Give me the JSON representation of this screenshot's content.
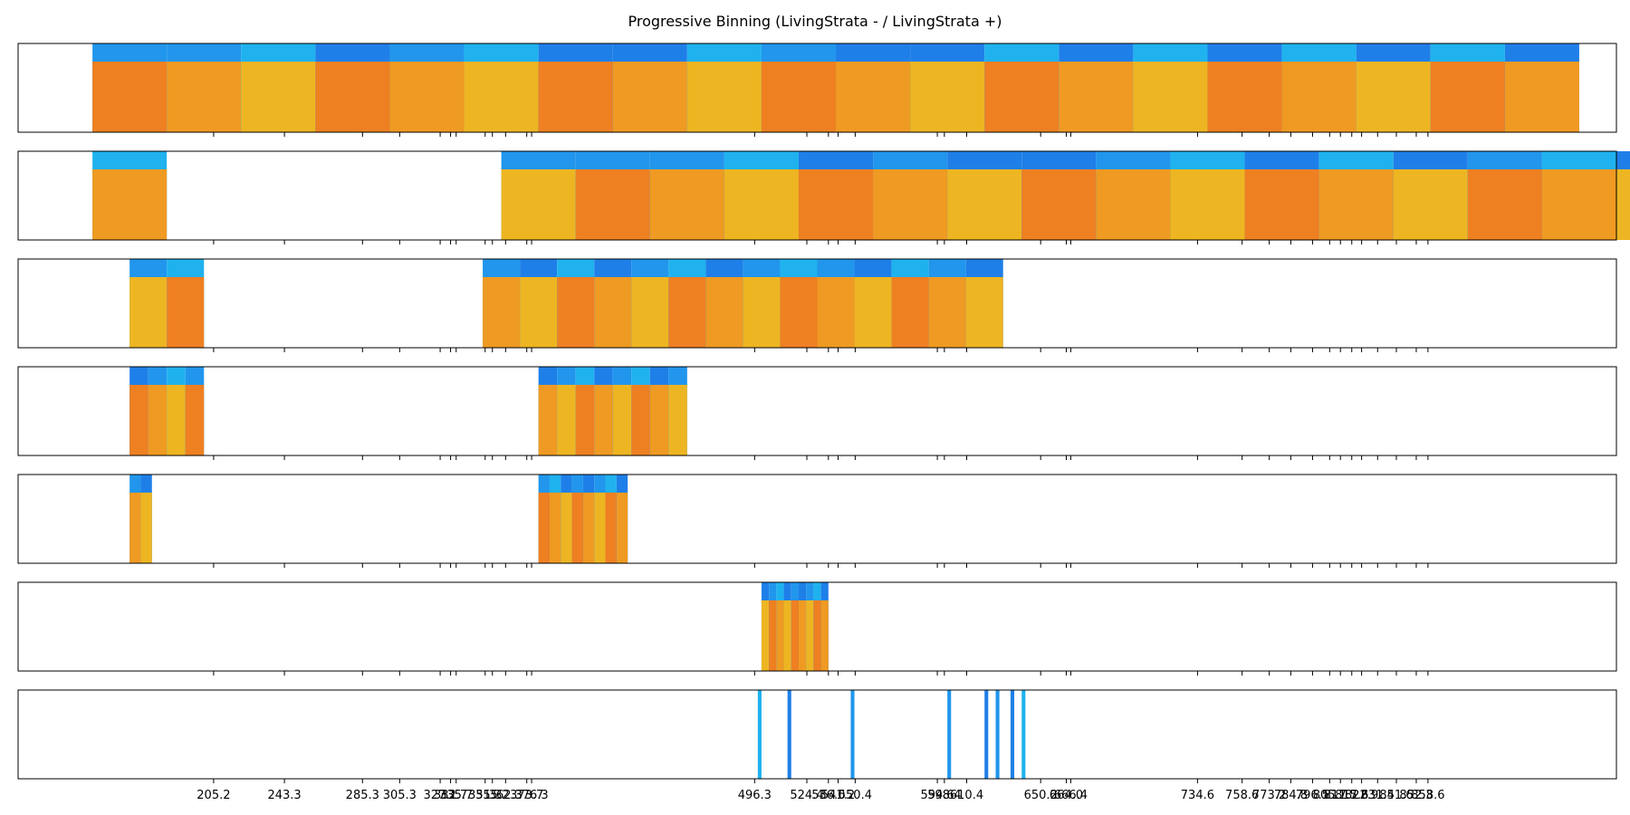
{
  "chart_data": {
    "type": "heatmap",
    "title": "Progressive Binning (LivingStrata - / LivingStrata +)",
    "xlabel": "",
    "ylabel": "",
    "x_range": [
      100,
      960
    ],
    "grid": false,
    "colors": {
      "blue_dark": "#1F7FE8",
      "blue_mid": "#2196EC",
      "blue_light": "#1FB2EE",
      "orange_dark": "#EE8022",
      "orange_mid": "#EF9A22",
      "orange_light": "#EEB522"
    },
    "tick_labels": [
      "205.2",
      "243.3",
      "285.3",
      "305.3",
      "327.1",
      "332.7",
      "335.7",
      "351.3",
      "355.2",
      "362.3",
      "373.7",
      "376.3",
      "496.3",
      "524.4",
      "536.0",
      "541.2",
      "550.4",
      "594.6",
      "598.4",
      "610.4",
      "650.2",
      "664.0",
      "666.4",
      "734.6",
      "758.6",
      "773.2",
      "784.8",
      "796.5",
      "805.7",
      "811.5",
      "817.6",
      "822.9",
      "831.5",
      "841.6",
      "852.3",
      "858.6"
    ],
    "tick_values": [
      205.2,
      243.3,
      285.3,
      305.3,
      327.1,
      332.7,
      335.7,
      351.3,
      355.2,
      362.3,
      373.7,
      376.3,
      496.3,
      524.4,
      536.0,
      541.2,
      550.4,
      594.6,
      598.4,
      610.4,
      650.2,
      664.0,
      666.4,
      734.6,
      758.6,
      773.2,
      784.8,
      796.5,
      805.7,
      811.5,
      817.6,
      822.9,
      831.5,
      841.6,
      852.3,
      858.6
    ],
    "rows": [
      [
        [
          "b2",
          140,
          180
        ],
        [
          "b2",
          180,
          220
        ],
        [
          "b3",
          220,
          260
        ],
        [
          "b1",
          260,
          300
        ],
        [
          "b2",
          300,
          340
        ],
        [
          "b3",
          340,
          380
        ],
        [
          "b1",
          380,
          420
        ],
        [
          "b1",
          420,
          460
        ],
        [
          "b3",
          460,
          500
        ],
        [
          "b2",
          500,
          540
        ],
        [
          "b1",
          540,
          580
        ],
        [
          "b1",
          580,
          620
        ],
        [
          "b3",
          620,
          660
        ],
        [
          "b1",
          660,
          700
        ],
        [
          "b3",
          700,
          740
        ],
        [
          "b1",
          740,
          780
        ],
        [
          "b3",
          780,
          820
        ],
        [
          "b1",
          820,
          860
        ],
        [
          "b3",
          860,
          900
        ],
        [
          "b1",
          900,
          940
        ]
      ],
      [
        [
          "b3",
          140,
          180
        ],
        [
          "b2",
          360,
          400
        ],
        [
          "b2",
          400,
          440
        ],
        [
          "b2",
          440,
          480
        ],
        [
          "b3",
          480,
          520
        ],
        [
          "b1",
          520,
          560
        ],
        [
          "b2",
          560,
          600
        ],
        [
          "b1",
          600,
          640
        ],
        [
          "b1",
          640,
          680
        ],
        [
          "b2",
          680,
          720
        ],
        [
          "b3",
          720,
          760
        ],
        [
          "b1",
          760,
          800
        ],
        [
          "b3",
          800,
          840
        ],
        [
          "b1",
          840,
          880
        ],
        [
          "b2",
          880,
          920
        ],
        [
          "b3",
          920,
          960
        ],
        [
          "b1",
          960,
          1000
        ]
      ],
      [
        [
          "b2",
          160,
          180
        ],
        [
          "b3",
          180,
          200
        ],
        [
          "b2",
          350,
          370
        ],
        [
          "b1",
          370,
          390
        ],
        [
          "b3",
          390,
          410
        ],
        [
          "b1",
          410,
          430
        ],
        [
          "b2",
          430,
          450
        ],
        [
          "b3",
          450,
          470
        ],
        [
          "b1",
          470,
          490
        ],
        [
          "b2",
          490,
          510
        ],
        [
          "b3",
          510,
          530
        ],
        [
          "b2",
          530,
          550
        ],
        [
          "b1",
          550,
          570
        ],
        [
          "b3",
          570,
          590
        ],
        [
          "b2",
          590,
          610
        ],
        [
          "b1",
          610,
          630
        ]
      ],
      [
        [
          "b1",
          160,
          170
        ],
        [
          "b2",
          170,
          180
        ],
        [
          "b3",
          180,
          190
        ],
        [
          "b2",
          190,
          200
        ],
        [
          "b1",
          380,
          390
        ],
        [
          "b2",
          390,
          400
        ],
        [
          "b3",
          400,
          410
        ],
        [
          "b1",
          410,
          420
        ],
        [
          "b2",
          420,
          430
        ],
        [
          "b3",
          430,
          440
        ],
        [
          "b1",
          440,
          450
        ],
        [
          "b2",
          450,
          460
        ]
      ],
      [
        [
          "b2",
          160,
          166
        ],
        [
          "b1",
          166,
          172
        ],
        [
          "b2",
          380,
          386
        ],
        [
          "b3",
          386,
          392
        ],
        [
          "b1",
          392,
          398
        ],
        [
          "b2",
          398,
          404
        ],
        [
          "b1",
          404,
          410
        ],
        [
          "b2",
          410,
          416
        ],
        [
          "b3",
          416,
          422
        ],
        [
          "b1",
          422,
          428
        ]
      ],
      [
        [
          "b1",
          500,
          504
        ],
        [
          "b2",
          504,
          508
        ],
        [
          "b3",
          508,
          512
        ],
        [
          "b1",
          512,
          516
        ],
        [
          "b2",
          516,
          520
        ],
        [
          "b1",
          520,
          524
        ],
        [
          "b2",
          524,
          528
        ],
        [
          "b3",
          528,
          532
        ],
        [
          "b1",
          532,
          536
        ]
      ],
      [
        [
          "b3",
          498,
          500
        ],
        [
          "b1",
          514,
          516
        ],
        [
          "b2",
          548,
          550
        ],
        [
          "b2",
          600,
          602
        ],
        [
          "b1",
          620,
          622
        ],
        [
          "b2",
          626,
          628
        ],
        [
          "b1",
          634,
          636
        ],
        [
          "b3",
          640,
          642
        ]
      ]
    ]
  }
}
